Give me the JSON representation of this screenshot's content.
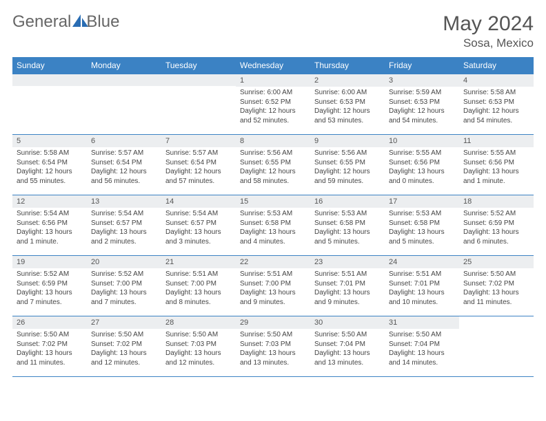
{
  "brand": {
    "general": "General",
    "blue": "Blue"
  },
  "title": "May 2024",
  "location": "Sosa, Mexico",
  "header_bg": "#3b82c4",
  "border_color": "#3b82c4",
  "daynum_bg": "#eceef0",
  "weekdays": [
    "Sunday",
    "Monday",
    "Tuesday",
    "Wednesday",
    "Thursday",
    "Friday",
    "Saturday"
  ],
  "empty_lead": 3,
  "days": [
    {
      "n": "1",
      "sunrise": "6:00 AM",
      "sunset": "6:52 PM",
      "daylight": "12 hours and 52 minutes."
    },
    {
      "n": "2",
      "sunrise": "6:00 AM",
      "sunset": "6:53 PM",
      "daylight": "12 hours and 53 minutes."
    },
    {
      "n": "3",
      "sunrise": "5:59 AM",
      "sunset": "6:53 PM",
      "daylight": "12 hours and 54 minutes."
    },
    {
      "n": "4",
      "sunrise": "5:58 AM",
      "sunset": "6:53 PM",
      "daylight": "12 hours and 54 minutes."
    },
    {
      "n": "5",
      "sunrise": "5:58 AM",
      "sunset": "6:54 PM",
      "daylight": "12 hours and 55 minutes."
    },
    {
      "n": "6",
      "sunrise": "5:57 AM",
      "sunset": "6:54 PM",
      "daylight": "12 hours and 56 minutes."
    },
    {
      "n": "7",
      "sunrise": "5:57 AM",
      "sunset": "6:54 PM",
      "daylight": "12 hours and 57 minutes."
    },
    {
      "n": "8",
      "sunrise": "5:56 AM",
      "sunset": "6:55 PM",
      "daylight": "12 hours and 58 minutes."
    },
    {
      "n": "9",
      "sunrise": "5:56 AM",
      "sunset": "6:55 PM",
      "daylight": "12 hours and 59 minutes."
    },
    {
      "n": "10",
      "sunrise": "5:55 AM",
      "sunset": "6:56 PM",
      "daylight": "13 hours and 0 minutes."
    },
    {
      "n": "11",
      "sunrise": "5:55 AM",
      "sunset": "6:56 PM",
      "daylight": "13 hours and 1 minute."
    },
    {
      "n": "12",
      "sunrise": "5:54 AM",
      "sunset": "6:56 PM",
      "daylight": "13 hours and 1 minute."
    },
    {
      "n": "13",
      "sunrise": "5:54 AM",
      "sunset": "6:57 PM",
      "daylight": "13 hours and 2 minutes."
    },
    {
      "n": "14",
      "sunrise": "5:54 AM",
      "sunset": "6:57 PM",
      "daylight": "13 hours and 3 minutes."
    },
    {
      "n": "15",
      "sunrise": "5:53 AM",
      "sunset": "6:58 PM",
      "daylight": "13 hours and 4 minutes."
    },
    {
      "n": "16",
      "sunrise": "5:53 AM",
      "sunset": "6:58 PM",
      "daylight": "13 hours and 5 minutes."
    },
    {
      "n": "17",
      "sunrise": "5:53 AM",
      "sunset": "6:58 PM",
      "daylight": "13 hours and 5 minutes."
    },
    {
      "n": "18",
      "sunrise": "5:52 AM",
      "sunset": "6:59 PM",
      "daylight": "13 hours and 6 minutes."
    },
    {
      "n": "19",
      "sunrise": "5:52 AM",
      "sunset": "6:59 PM",
      "daylight": "13 hours and 7 minutes."
    },
    {
      "n": "20",
      "sunrise": "5:52 AM",
      "sunset": "7:00 PM",
      "daylight": "13 hours and 7 minutes."
    },
    {
      "n": "21",
      "sunrise": "5:51 AM",
      "sunset": "7:00 PM",
      "daylight": "13 hours and 8 minutes."
    },
    {
      "n": "22",
      "sunrise": "5:51 AM",
      "sunset": "7:00 PM",
      "daylight": "13 hours and 9 minutes."
    },
    {
      "n": "23",
      "sunrise": "5:51 AM",
      "sunset": "7:01 PM",
      "daylight": "13 hours and 9 minutes."
    },
    {
      "n": "24",
      "sunrise": "5:51 AM",
      "sunset": "7:01 PM",
      "daylight": "13 hours and 10 minutes."
    },
    {
      "n": "25",
      "sunrise": "5:50 AM",
      "sunset": "7:02 PM",
      "daylight": "13 hours and 11 minutes."
    },
    {
      "n": "26",
      "sunrise": "5:50 AM",
      "sunset": "7:02 PM",
      "daylight": "13 hours and 11 minutes."
    },
    {
      "n": "27",
      "sunrise": "5:50 AM",
      "sunset": "7:02 PM",
      "daylight": "13 hours and 12 minutes."
    },
    {
      "n": "28",
      "sunrise": "5:50 AM",
      "sunset": "7:03 PM",
      "daylight": "13 hours and 12 minutes."
    },
    {
      "n": "29",
      "sunrise": "5:50 AM",
      "sunset": "7:03 PM",
      "daylight": "13 hours and 13 minutes."
    },
    {
      "n": "30",
      "sunrise": "5:50 AM",
      "sunset": "7:04 PM",
      "daylight": "13 hours and 13 minutes."
    },
    {
      "n": "31",
      "sunrise": "5:50 AM",
      "sunset": "7:04 PM",
      "daylight": "13 hours and 14 minutes."
    }
  ],
  "labels": {
    "sunrise": "Sunrise:",
    "sunset": "Sunset:",
    "daylight": "Daylight:"
  }
}
